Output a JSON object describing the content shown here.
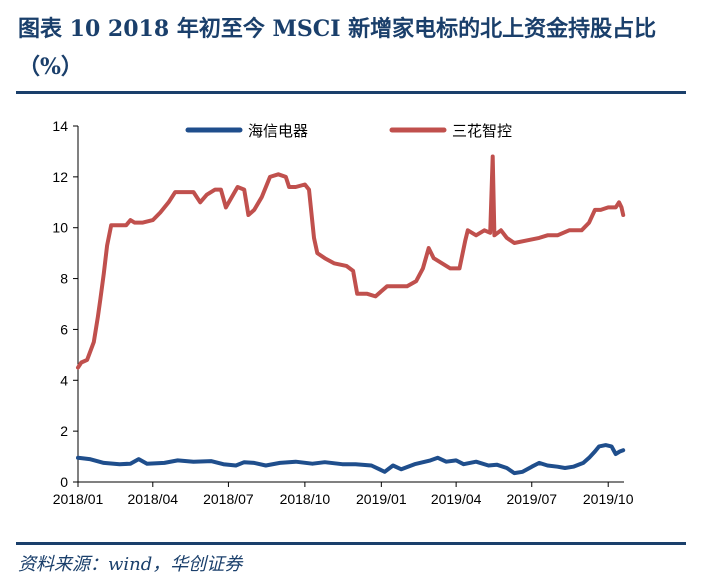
{
  "title": "图表 10   2018 年初至今 MSCI 新增家电标的北上资金持股占比（%）",
  "source": "资料来源：wind，华创证券",
  "chart_data": {
    "type": "line",
    "title": "图表 10   2018 年初至今 MSCI 新增家电标的北上资金持股占比（%）",
    "xlabel": "",
    "ylabel": "",
    "ylim": [
      0,
      14
    ],
    "yticks": [
      "0",
      "2",
      "4",
      "6",
      "8",
      "10",
      "12",
      "14"
    ],
    "xlim": [
      "2018-01-01",
      "2019-10-20"
    ],
    "xticks": [
      {
        "date": "2018-01-01",
        "label": "2018/01"
      },
      {
        "date": "2018-04-01",
        "label": "2018/04"
      },
      {
        "date": "2018-07-01",
        "label": "2018/07"
      },
      {
        "date": "2018-10-01",
        "label": "2018/10"
      },
      {
        "date": "2019-01-01",
        "label": "2019/01"
      },
      {
        "date": "2019-04-01",
        "label": "2019/04"
      },
      {
        "date": "2019-07-01",
        "label": "2019/07"
      },
      {
        "date": "2019-10-01",
        "label": "2019/10"
      }
    ],
    "grid": false,
    "legend_position": "top",
    "series": [
      {
        "name": "海信电器",
        "color": "#1f4e8c",
        "points": [
          [
            "2018-01-01",
            0.95
          ],
          [
            "2018-01-15",
            0.9
          ],
          [
            "2018-02-01",
            0.75
          ],
          [
            "2018-02-20",
            0.7
          ],
          [
            "2018-03-05",
            0.72
          ],
          [
            "2018-03-15",
            0.9
          ],
          [
            "2018-03-25",
            0.72
          ],
          [
            "2018-04-15",
            0.75
          ],
          [
            "2018-05-01",
            0.85
          ],
          [
            "2018-05-20",
            0.8
          ],
          [
            "2018-06-10",
            0.82
          ],
          [
            "2018-06-25",
            0.7
          ],
          [
            "2018-07-10",
            0.65
          ],
          [
            "2018-07-20",
            0.78
          ],
          [
            "2018-08-01",
            0.75
          ],
          [
            "2018-08-15",
            0.65
          ],
          [
            "2018-09-01",
            0.75
          ],
          [
            "2018-09-20",
            0.8
          ],
          [
            "2018-10-10",
            0.72
          ],
          [
            "2018-10-25",
            0.78
          ],
          [
            "2018-11-15",
            0.7
          ],
          [
            "2018-12-01",
            0.7
          ],
          [
            "2018-12-20",
            0.65
          ],
          [
            "2019-01-05",
            0.4
          ],
          [
            "2019-01-15",
            0.65
          ],
          [
            "2019-01-25",
            0.5
          ],
          [
            "2019-02-10",
            0.7
          ],
          [
            "2019-03-01",
            0.85
          ],
          [
            "2019-03-10",
            0.95
          ],
          [
            "2019-03-20",
            0.8
          ],
          [
            "2019-04-01",
            0.85
          ],
          [
            "2019-04-10",
            0.7
          ],
          [
            "2019-04-25",
            0.8
          ],
          [
            "2019-05-10",
            0.65
          ],
          [
            "2019-05-20",
            0.68
          ],
          [
            "2019-06-01",
            0.55
          ],
          [
            "2019-06-10",
            0.35
          ],
          [
            "2019-06-20",
            0.4
          ],
          [
            "2019-07-01",
            0.6
          ],
          [
            "2019-07-10",
            0.75
          ],
          [
            "2019-07-20",
            0.65
          ],
          [
            "2019-08-01",
            0.6
          ],
          [
            "2019-08-10",
            0.55
          ],
          [
            "2019-08-20",
            0.6
          ],
          [
            "2019-09-01",
            0.75
          ],
          [
            "2019-09-08",
            0.95
          ],
          [
            "2019-09-15",
            1.2
          ],
          [
            "2019-09-20",
            1.4
          ],
          [
            "2019-09-28",
            1.45
          ],
          [
            "2019-10-05",
            1.4
          ],
          [
            "2019-10-10",
            1.1
          ],
          [
            "2019-10-15",
            1.2
          ],
          [
            "2019-10-19",
            1.25
          ]
        ]
      },
      {
        "name": "三花智控",
        "color": "#c0504d",
        "points": [
          [
            "2018-01-01",
            4.5
          ],
          [
            "2018-01-05",
            4.7
          ],
          [
            "2018-01-12",
            4.8
          ],
          [
            "2018-01-20",
            5.5
          ],
          [
            "2018-01-25",
            6.5
          ],
          [
            "2018-01-28",
            7.2
          ],
          [
            "2018-02-01",
            8.2
          ],
          [
            "2018-02-05",
            9.3
          ],
          [
            "2018-02-10",
            10.1
          ],
          [
            "2018-02-20",
            10.1
          ],
          [
            "2018-02-28",
            10.1
          ],
          [
            "2018-03-05",
            10.3
          ],
          [
            "2018-03-10",
            10.2
          ],
          [
            "2018-03-20",
            10.2
          ],
          [
            "2018-04-01",
            10.3
          ],
          [
            "2018-04-10",
            10.6
          ],
          [
            "2018-04-20",
            11.0
          ],
          [
            "2018-04-28",
            11.4
          ],
          [
            "2018-05-10",
            11.4
          ],
          [
            "2018-05-20",
            11.4
          ],
          [
            "2018-05-28",
            11.0
          ],
          [
            "2018-06-05",
            11.3
          ],
          [
            "2018-06-15",
            11.5
          ],
          [
            "2018-06-22",
            11.5
          ],
          [
            "2018-06-28",
            10.8
          ],
          [
            "2018-07-05",
            11.2
          ],
          [
            "2018-07-12",
            11.6
          ],
          [
            "2018-07-20",
            11.5
          ],
          [
            "2018-07-25",
            10.5
          ],
          [
            "2018-08-01",
            10.7
          ],
          [
            "2018-08-10",
            11.2
          ],
          [
            "2018-08-20",
            12.0
          ],
          [
            "2018-08-30",
            12.1
          ],
          [
            "2018-09-08",
            12.0
          ],
          [
            "2018-09-12",
            11.6
          ],
          [
            "2018-09-20",
            11.6
          ],
          [
            "2018-10-01",
            11.7
          ],
          [
            "2018-10-06",
            11.5
          ],
          [
            "2018-10-12",
            9.6
          ],
          [
            "2018-10-16",
            9.0
          ],
          [
            "2018-10-25",
            8.8
          ],
          [
            "2018-11-05",
            8.6
          ],
          [
            "2018-11-20",
            8.5
          ],
          [
            "2018-11-28",
            8.3
          ],
          [
            "2018-12-03",
            7.4
          ],
          [
            "2018-12-15",
            7.4
          ],
          [
            "2018-12-25",
            7.3
          ],
          [
            "2019-01-01",
            7.5
          ],
          [
            "2019-01-08",
            7.7
          ],
          [
            "2019-01-20",
            7.7
          ],
          [
            "2019-02-01",
            7.7
          ],
          [
            "2019-02-12",
            7.9
          ],
          [
            "2019-02-20",
            8.4
          ],
          [
            "2019-02-27",
            9.2
          ],
          [
            "2019-03-05",
            8.8
          ],
          [
            "2019-03-15",
            8.6
          ],
          [
            "2019-03-25",
            8.4
          ],
          [
            "2019-04-05",
            8.4
          ],
          [
            "2019-04-12",
            9.5
          ],
          [
            "2019-04-15",
            9.9
          ],
          [
            "2019-04-25",
            9.7
          ],
          [
            "2019-05-05",
            9.9
          ],
          [
            "2019-05-12",
            9.8
          ],
          [
            "2019-05-15",
            12.8
          ],
          [
            "2019-05-17",
            9.7
          ],
          [
            "2019-05-25",
            9.9
          ],
          [
            "2019-06-01",
            9.6
          ],
          [
            "2019-06-10",
            9.4
          ],
          [
            "2019-06-25",
            9.5
          ],
          [
            "2019-07-10",
            9.6
          ],
          [
            "2019-07-20",
            9.7
          ],
          [
            "2019-08-01",
            9.7
          ],
          [
            "2019-08-15",
            9.9
          ],
          [
            "2019-08-30",
            9.9
          ],
          [
            "2019-09-08",
            10.2
          ],
          [
            "2019-09-15",
            10.7
          ],
          [
            "2019-09-22",
            10.7
          ],
          [
            "2019-10-01",
            10.8
          ],
          [
            "2019-10-10",
            10.8
          ],
          [
            "2019-10-14",
            11.0
          ],
          [
            "2019-10-17",
            10.8
          ],
          [
            "2019-10-19",
            10.5
          ]
        ]
      }
    ]
  }
}
